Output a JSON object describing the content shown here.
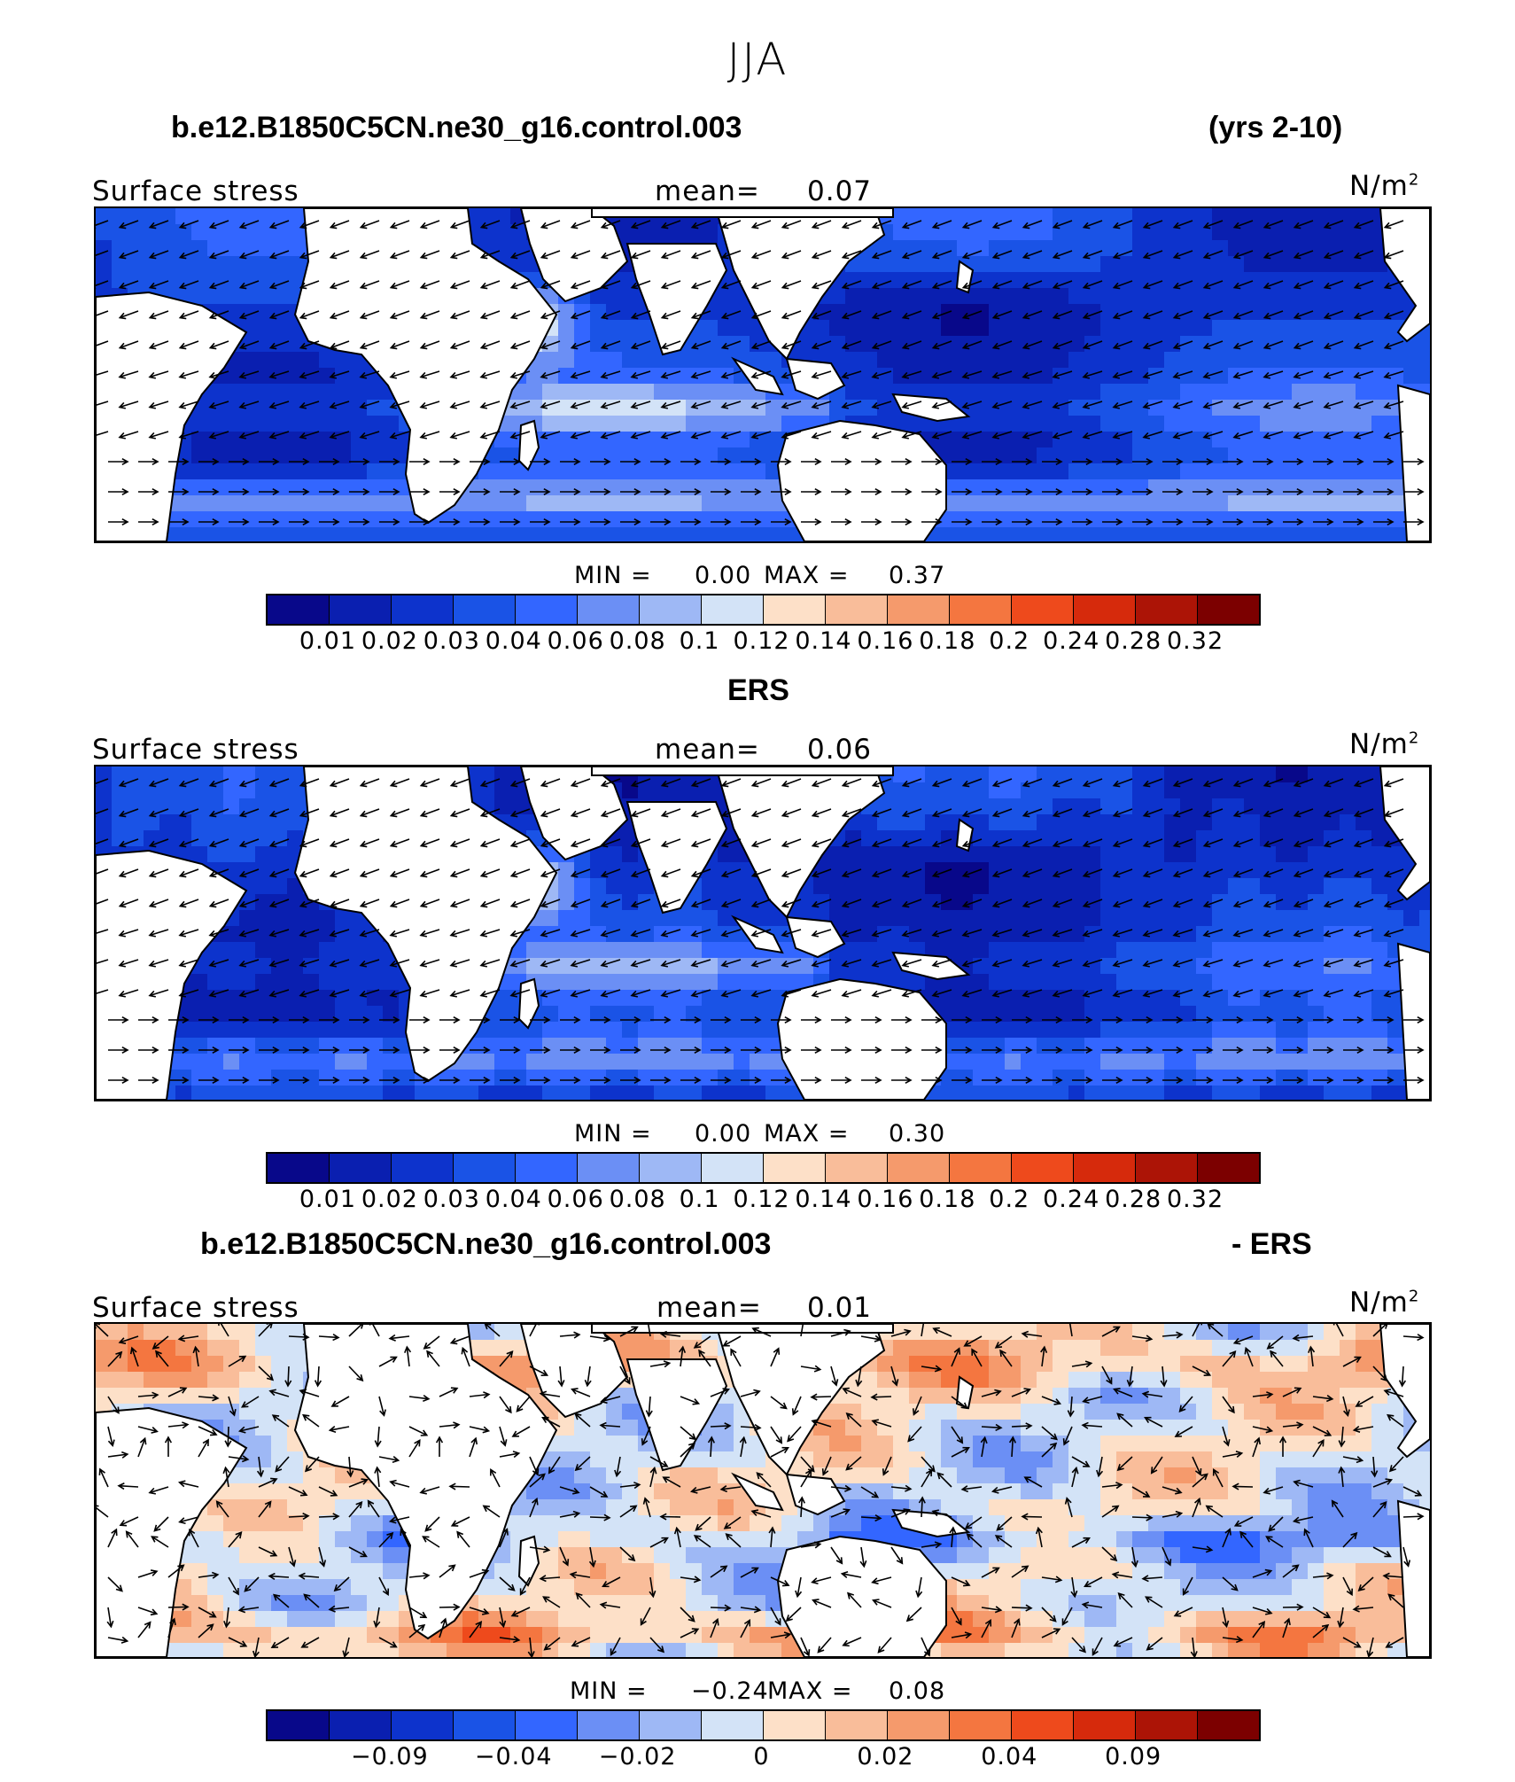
{
  "title": "JJA",
  "header": {
    "case": "b.e12.B1850C5CN.ne30_g16.control.003",
    "years": "(yrs 2-10)"
  },
  "palette": [
    "#08088a",
    "#0a1fb0",
    "#0d33cc",
    "#1a53e6",
    "#3366ff",
    "#6b8ff5",
    "#9eb8f5",
    "#d3e3f7",
    "#fde0c8",
    "#f9bd9a",
    "#f59a6c",
    "#f47640",
    "#ee4a1c",
    "#d62a0c",
    "#ac1406",
    "#7c0000"
  ],
  "panels": [
    {
      "subtitle": "",
      "variable": "Surface stress",
      "mean_label": "mean=",
      "mean": "0.07",
      "units": "N/m",
      "units_sup": "2",
      "min_label": "MIN =",
      "min": "0.00",
      "max_label": "MAX =",
      "max": "0.37",
      "ticks": [
        "0.01",
        "0.02",
        "0.03",
        "0.04",
        "0.06",
        "0.08",
        "0.1",
        "0.12",
        "0.14",
        "0.16",
        "0.18",
        "0.2",
        "0.24",
        "0.28",
        "0.32"
      ]
    },
    {
      "subtitle": "ERS",
      "variable": "Surface stress",
      "mean_label": "mean=",
      "mean": "0.06",
      "units": "N/m",
      "units_sup": "2",
      "min_label": "MIN =",
      "min": "0.00",
      "max_label": "MAX =",
      "max": "0.30",
      "ticks": [
        "0.01",
        "0.02",
        "0.03",
        "0.04",
        "0.06",
        "0.08",
        "0.1",
        "0.12",
        "0.14",
        "0.16",
        "0.18",
        "0.2",
        "0.24",
        "0.28",
        "0.32"
      ]
    },
    {
      "subtitle_left": "b.e12.B1850C5CN.ne30_g16.control.003",
      "subtitle_right": "- ERS",
      "variable": "Surface stress",
      "mean_label": "mean=",
      "mean": "0.01",
      "units": "N/m",
      "units_sup": "2",
      "min_label": "MIN =",
      "min": "−0.24",
      "max_label": "MAX =",
      "max": "0.08",
      "ticks": [
        "−0.09",
        "−0.04",
        "−0.02",
        "0",
        "0.02",
        "0.04",
        "0.09"
      ]
    }
  ]
}
